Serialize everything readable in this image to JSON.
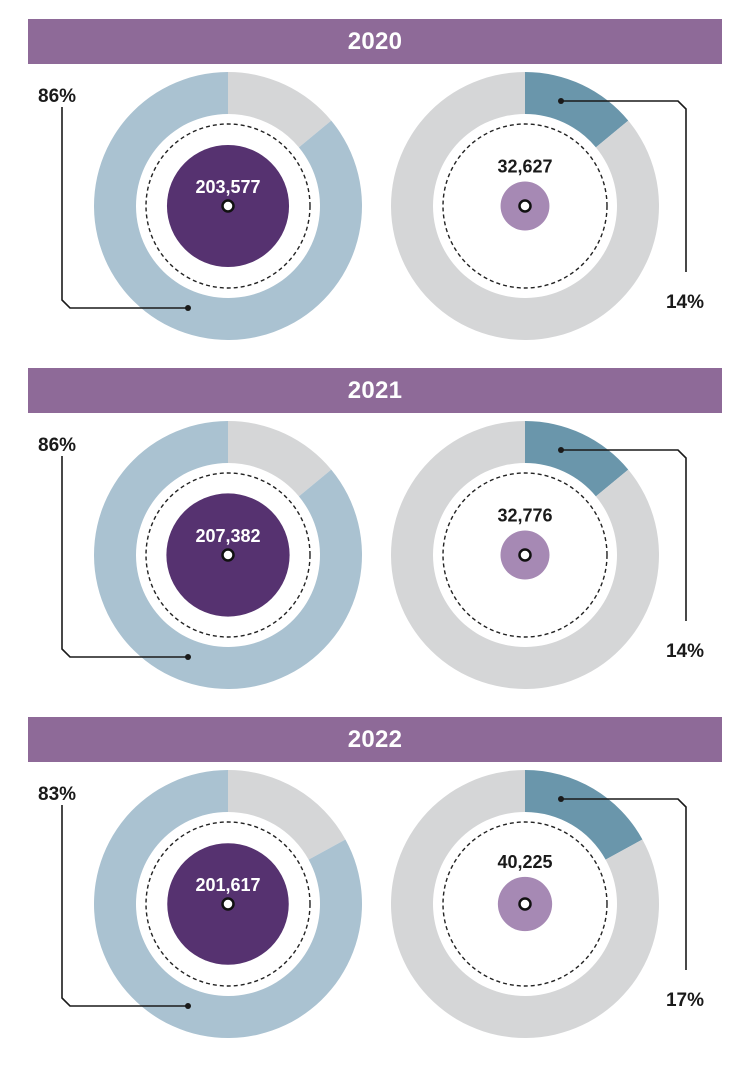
{
  "colors": {
    "banner": "#8e6a98",
    "major_arc": "#aac2d1",
    "minor_arc": "#6a96ab",
    "remainder_arc": "#d5d6d7",
    "major_bubble": "#563270",
    "minor_bubble": "#a689b4",
    "leader": "#1a1a1a"
  },
  "chart_data": [
    {
      "type": "pie",
      "title": "2020",
      "slices": [
        {
          "percent_label": "86%",
          "percent": 86,
          "value": 203577,
          "value_label": "203,577"
        },
        {
          "percent_label": "14%",
          "percent": 14,
          "value": 32627,
          "value_label": "32,627"
        }
      ]
    },
    {
      "type": "pie",
      "title": "2021",
      "slices": [
        {
          "percent_label": "86%",
          "percent": 86,
          "value": 207382,
          "value_label": "207,382"
        },
        {
          "percent_label": "14%",
          "percent": 14,
          "value": 32776,
          "value_label": "32,776"
        }
      ]
    },
    {
      "type": "pie",
      "title": "2022",
      "slices": [
        {
          "percent_label": "83%",
          "percent": 83,
          "value": 201617,
          "value_label": "201,617"
        },
        {
          "percent_label": "17%",
          "percent": 17,
          "value": 40225,
          "value_label": "40,225"
        }
      ]
    }
  ]
}
